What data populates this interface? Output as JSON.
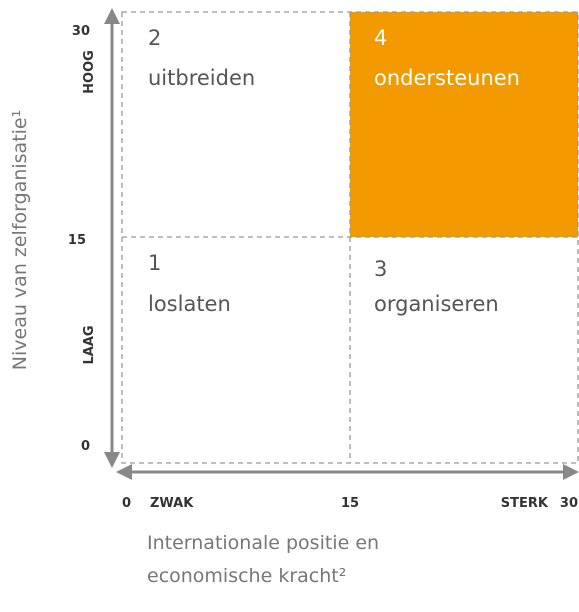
{
  "y_axis": {
    "title": "Niveau van zelforganisatie¹",
    "ticks": [
      "30",
      "15",
      "0"
    ],
    "high": "HOOG",
    "low": "LAAG"
  },
  "x_axis": {
    "title_lines": [
      "Internationale positie en",
      "economische kracht²"
    ],
    "ticks": [
      "0",
      "15",
      "30"
    ],
    "low": "ZWAK",
    "high": "STERK"
  },
  "quadrants": [
    {
      "number": "2",
      "label": "uitbreiden"
    },
    {
      "number": "4",
      "label": "ondersteunen"
    },
    {
      "number": "1",
      "label": "loslaten"
    },
    {
      "number": "3",
      "label": "organiseren"
    }
  ]
}
